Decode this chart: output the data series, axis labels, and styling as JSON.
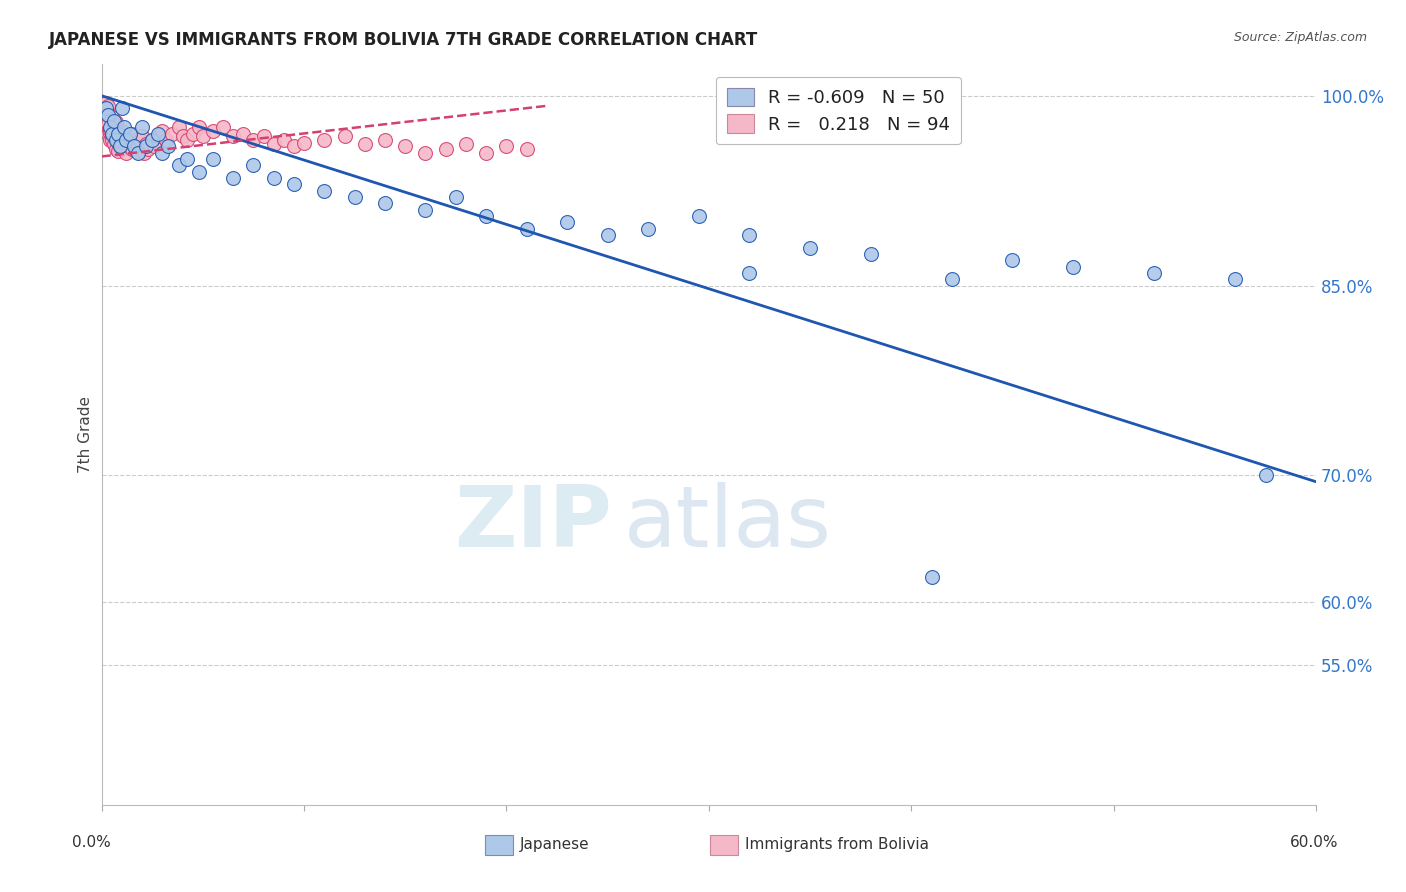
{
  "title": "JAPANESE VS IMMIGRANTS FROM BOLIVIA 7TH GRADE CORRELATION CHART",
  "source": "Source: ZipAtlas.com",
  "ylabel": "7th Grade",
  "xlim": [
    0.0,
    0.6
  ],
  "ylim": [
    0.44,
    1.025
  ],
  "ytick_values": [
    0.55,
    0.6,
    0.7,
    0.85,
    1.0
  ],
  "ytick_labels": [
    "55.0%",
    "60.0%",
    "70.0%",
    "85.0%",
    "100.0%"
  ],
  "legend_blue_r": "-0.609",
  "legend_blue_n": "50",
  "legend_pink_r": "0.218",
  "legend_pink_n": "94",
  "blue_color": "#adc8e8",
  "blue_line_color": "#1e56b0",
  "pink_color": "#f5b8c8",
  "pink_line_color": "#d44070",
  "background_color": "#ffffff",
  "blue_line_x": [
    0.0,
    0.6
  ],
  "blue_line_y": [
    1.0,
    0.695
  ],
  "pink_line_x": [
    0.0,
    0.22
  ],
  "pink_line_y": [
    0.952,
    0.992
  ],
  "jap_x": [
    0.002,
    0.003,
    0.004,
    0.005,
    0.006,
    0.007,
    0.008,
    0.009,
    0.01,
    0.011,
    0.012,
    0.014,
    0.016,
    0.018,
    0.02,
    0.022,
    0.025,
    0.028,
    0.03,
    0.033,
    0.038,
    0.042,
    0.048,
    0.055,
    0.065,
    0.075,
    0.085,
    0.095,
    0.11,
    0.125,
    0.14,
    0.16,
    0.175,
    0.19,
    0.21,
    0.23,
    0.25,
    0.27,
    0.295,
    0.32,
    0.35,
    0.38,
    0.32,
    0.42,
    0.45,
    0.48,
    0.52,
    0.56,
    0.41,
    0.575
  ],
  "jap_y": [
    0.99,
    0.985,
    0.975,
    0.97,
    0.98,
    0.965,
    0.97,
    0.96,
    0.99,
    0.975,
    0.965,
    0.97,
    0.96,
    0.955,
    0.975,
    0.96,
    0.965,
    0.97,
    0.955,
    0.96,
    0.945,
    0.95,
    0.94,
    0.95,
    0.935,
    0.945,
    0.935,
    0.93,
    0.925,
    0.92,
    0.915,
    0.91,
    0.92,
    0.905,
    0.895,
    0.9,
    0.89,
    0.895,
    0.905,
    0.89,
    0.88,
    0.875,
    0.86,
    0.855,
    0.87,
    0.865,
    0.86,
    0.855,
    0.62,
    0.7
  ],
  "bol_x": [
    0.001,
    0.001,
    0.001,
    0.002,
    0.002,
    0.002,
    0.002,
    0.003,
    0.003,
    0.003,
    0.003,
    0.003,
    0.004,
    0.004,
    0.004,
    0.004,
    0.005,
    0.005,
    0.005,
    0.005,
    0.005,
    0.006,
    0.006,
    0.006,
    0.006,
    0.007,
    0.007,
    0.007,
    0.008,
    0.008,
    0.008,
    0.009,
    0.009,
    0.01,
    0.01,
    0.01,
    0.011,
    0.012,
    0.012,
    0.013,
    0.014,
    0.015,
    0.015,
    0.016,
    0.017,
    0.018,
    0.019,
    0.02,
    0.021,
    0.022,
    0.023,
    0.025,
    0.026,
    0.028,
    0.03,
    0.032,
    0.035,
    0.038,
    0.04,
    0.042,
    0.045,
    0.048,
    0.05,
    0.055,
    0.06,
    0.065,
    0.07,
    0.075,
    0.08,
    0.085,
    0.09,
    0.095,
    0.1,
    0.11,
    0.12,
    0.13,
    0.14,
    0.15,
    0.16,
    0.17,
    0.18,
    0.19,
    0.2,
    0.21,
    0.001,
    0.002,
    0.003,
    0.004,
    0.005,
    0.006,
    0.007,
    0.008,
    0.002,
    0.003
  ],
  "bol_y": [
    0.99,
    0.985,
    0.98,
    0.985,
    0.978,
    0.982,
    0.975,
    0.98,
    0.975,
    0.97,
    0.985,
    0.978,
    0.975,
    0.98,
    0.97,
    0.965,
    0.975,
    0.968,
    0.972,
    0.965,
    0.978,
    0.97,
    0.962,
    0.975,
    0.968,
    0.972,
    0.965,
    0.958,
    0.97,
    0.963,
    0.956,
    0.968,
    0.96,
    0.972,
    0.965,
    0.958,
    0.962,
    0.968,
    0.955,
    0.96,
    0.965,
    0.97,
    0.958,
    0.963,
    0.956,
    0.96,
    0.965,
    0.968,
    0.955,
    0.962,
    0.958,
    0.965,
    0.96,
    0.968,
    0.972,
    0.965,
    0.97,
    0.975,
    0.968,
    0.965,
    0.97,
    0.975,
    0.968,
    0.972,
    0.975,
    0.968,
    0.97,
    0.965,
    0.968,
    0.962,
    0.965,
    0.96,
    0.963,
    0.965,
    0.968,
    0.962,
    0.965,
    0.96,
    0.955,
    0.958,
    0.962,
    0.955,
    0.96,
    0.958,
    0.988,
    0.983,
    0.978,
    0.973,
    0.983,
    0.976,
    0.979,
    0.972,
    0.994,
    0.992
  ]
}
